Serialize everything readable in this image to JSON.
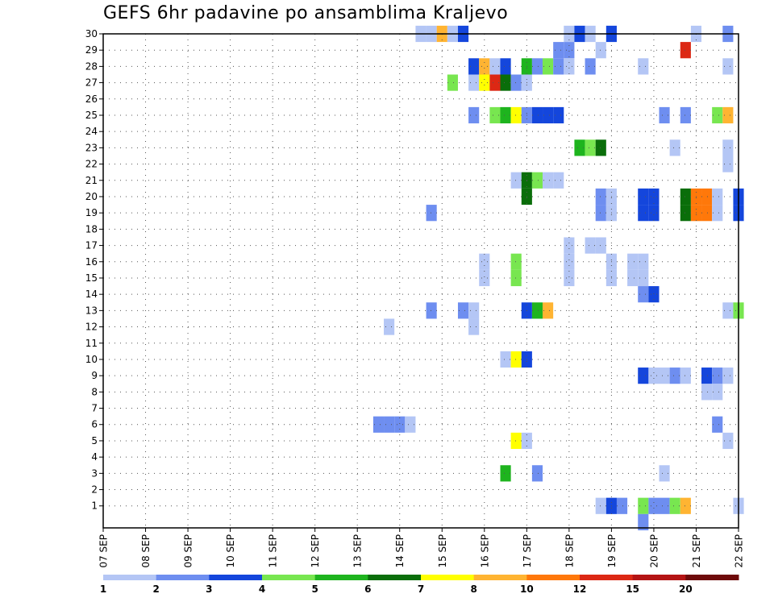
{
  "chart_data": {
    "type": "heatmap",
    "title": "GEFS 6hr padavine po ansamblima Kraljevo",
    "x_tick_labels": [
      "07 SEP",
      "08 SEP",
      "09 SEP",
      "10 SEP",
      "11 SEP",
      "12 SEP",
      "13 SEP",
      "14 SEP",
      "15 SEP",
      "16 SEP",
      "17 SEP",
      "18 SEP",
      "19 SEP",
      "20 SEP",
      "21 SEP",
      "22 SEP"
    ],
    "y_tick_labels": [
      "1",
      "2",
      "3",
      "4",
      "5",
      "6",
      "7",
      "8",
      "9",
      "10",
      "11",
      "12",
      "13",
      "14",
      "15",
      "16",
      "17",
      "18",
      "19",
      "20",
      "21",
      "22",
      "23",
      "24",
      "25",
      "26",
      "27",
      "28",
      "29",
      "30"
    ],
    "x_range_steps": [
      0,
      60
    ],
    "steps_per_day": 4,
    "y_range": [
      0,
      30
    ],
    "grid": true,
    "legend": {
      "position": "bottom",
      "labels": [
        "1",
        "2",
        "3",
        "4",
        "5",
        "6",
        "7",
        "8",
        "10",
        "12",
        "15",
        "20"
      ],
      "colors": [
        "#b4c6f5",
        "#6e8ef0",
        "#1446dc",
        "#78e650",
        "#1eb41e",
        "#0a6e0a",
        "#ffff00",
        "#ffb432",
        "#ff780a",
        "#dc2814",
        "#b41414",
        "#6e0a0a"
      ]
    },
    "cells": [
      {
        "m": 30,
        "s": 30,
        "c": 0
      },
      {
        "m": 30,
        "s": 31,
        "c": 0
      },
      {
        "m": 30,
        "s": 32,
        "c": 7
      },
      {
        "m": 30,
        "s": 33,
        "c": 0
      },
      {
        "m": 30,
        "s": 34,
        "c": 2
      },
      {
        "m": 30,
        "s": 44,
        "c": 0
      },
      {
        "m": 30,
        "s": 45,
        "c": 2
      },
      {
        "m": 30,
        "s": 46,
        "c": 0
      },
      {
        "m": 30,
        "s": 48,
        "c": 2
      },
      {
        "m": 30,
        "s": 56,
        "c": 0
      },
      {
        "m": 30,
        "s": 59,
        "c": 1
      },
      {
        "m": 29,
        "s": 43,
        "c": 1
      },
      {
        "m": 29,
        "s": 44,
        "c": 1
      },
      {
        "m": 29,
        "s": 47,
        "c": 0
      },
      {
        "m": 29,
        "s": 55,
        "c": 9
      },
      {
        "m": 28,
        "s": 35,
        "c": 2
      },
      {
        "m": 28,
        "s": 36,
        "c": 7
      },
      {
        "m": 28,
        "s": 37,
        "c": 0
      },
      {
        "m": 28,
        "s": 38,
        "c": 2
      },
      {
        "m": 28,
        "s": 40,
        "c": 4
      },
      {
        "m": 28,
        "s": 41,
        "c": 1
      },
      {
        "m": 28,
        "s": 42,
        "c": 3
      },
      {
        "m": 28,
        "s": 43,
        "c": 1
      },
      {
        "m": 28,
        "s": 44,
        "c": 0
      },
      {
        "m": 28,
        "s": 46,
        "c": 1
      },
      {
        "m": 28,
        "s": 51,
        "c": 0
      },
      {
        "m": 28,
        "s": 59,
        "c": 0
      },
      {
        "m": 27,
        "s": 33,
        "c": 3
      },
      {
        "m": 27,
        "s": 35,
        "c": 0
      },
      {
        "m": 27,
        "s": 36,
        "c": 6
      },
      {
        "m": 27,
        "s": 37,
        "c": 9
      },
      {
        "m": 27,
        "s": 38,
        "c": 5
      },
      {
        "m": 27,
        "s": 39,
        "c": 1
      },
      {
        "m": 27,
        "s": 40,
        "c": 0
      },
      {
        "m": 25,
        "s": 35,
        "c": 1
      },
      {
        "m": 25,
        "s": 37,
        "c": 3
      },
      {
        "m": 25,
        "s": 38,
        "c": 4
      },
      {
        "m": 25,
        "s": 39,
        "c": 6
      },
      {
        "m": 25,
        "s": 40,
        "c": 1
      },
      {
        "m": 25,
        "s": 41,
        "c": 2
      },
      {
        "m": 25,
        "s": 42,
        "c": 2
      },
      {
        "m": 25,
        "s": 43,
        "c": 2
      },
      {
        "m": 25,
        "s": 53,
        "c": 1
      },
      {
        "m": 25,
        "s": 55,
        "c": 1
      },
      {
        "m": 25,
        "s": 58,
        "c": 3
      },
      {
        "m": 25,
        "s": 59,
        "c": 7
      },
      {
        "m": 23,
        "s": 45,
        "c": 4
      },
      {
        "m": 23,
        "s": 46,
        "c": 3
      },
      {
        "m": 23,
        "s": 47,
        "c": 5
      },
      {
        "m": 23,
        "s": 54,
        "c": 0
      },
      {
        "m": 23,
        "s": 59,
        "c": 0
      },
      {
        "m": 22,
        "s": 59,
        "c": 0
      },
      {
        "m": 21,
        "s": 39,
        "c": 0
      },
      {
        "m": 21,
        "s": 40,
        "c": 5
      },
      {
        "m": 21,
        "s": 41,
        "c": 3
      },
      {
        "m": 21,
        "s": 42,
        "c": 0
      },
      {
        "m": 21,
        "s": 43,
        "c": 0
      },
      {
        "m": 20,
        "s": 40,
        "c": 5
      },
      {
        "m": 20,
        "s": 47,
        "c": 1
      },
      {
        "m": 20,
        "s": 48,
        "c": 0
      },
      {
        "m": 20,
        "s": 51,
        "c": 2
      },
      {
        "m": 20,
        "s": 52,
        "c": 2
      },
      {
        "m": 20,
        "s": 55,
        "c": 5
      },
      {
        "m": 20,
        "s": 56,
        "c": 8
      },
      {
        "m": 20,
        "s": 57,
        "c": 8
      },
      {
        "m": 20,
        "s": 58,
        "c": 0
      },
      {
        "m": 20,
        "s": 60,
        "c": 2
      },
      {
        "m": 19,
        "s": 31,
        "c": 1
      },
      {
        "m": 19,
        "s": 47,
        "c": 1
      },
      {
        "m": 19,
        "s": 48,
        "c": 0
      },
      {
        "m": 19,
        "s": 51,
        "c": 2
      },
      {
        "m": 19,
        "s": 52,
        "c": 2
      },
      {
        "m": 19,
        "s": 55,
        "c": 5
      },
      {
        "m": 19,
        "s": 56,
        "c": 8
      },
      {
        "m": 19,
        "s": 57,
        "c": 8
      },
      {
        "m": 19,
        "s": 58,
        "c": 0
      },
      {
        "m": 19,
        "s": 60,
        "c": 2
      },
      {
        "m": 17,
        "s": 44,
        "c": 0
      },
      {
        "m": 17,
        "s": 46,
        "c": 0
      },
      {
        "m": 17,
        "s": 47,
        "c": 0
      },
      {
        "m": 16,
        "s": 36,
        "c": 0
      },
      {
        "m": 16,
        "s": 39,
        "c": 3
      },
      {
        "m": 16,
        "s": 44,
        "c": 0
      },
      {
        "m": 16,
        "s": 48,
        "c": 0
      },
      {
        "m": 16,
        "s": 50,
        "c": 0
      },
      {
        "m": 16,
        "s": 51,
        "c": 0
      },
      {
        "m": 15,
        "s": 36,
        "c": 0
      },
      {
        "m": 15,
        "s": 39,
        "c": 3
      },
      {
        "m": 15,
        "s": 44,
        "c": 0
      },
      {
        "m": 15,
        "s": 48,
        "c": 0
      },
      {
        "m": 15,
        "s": 50,
        "c": 0
      },
      {
        "m": 15,
        "s": 51,
        "c": 0
      },
      {
        "m": 14,
        "s": 51,
        "c": 1
      },
      {
        "m": 14,
        "s": 52,
        "c": 2
      },
      {
        "m": 13,
        "s": 31,
        "c": 1
      },
      {
        "m": 13,
        "s": 34,
        "c": 1
      },
      {
        "m": 13,
        "s": 35,
        "c": 0
      },
      {
        "m": 13,
        "s": 40,
        "c": 2
      },
      {
        "m": 13,
        "s": 41,
        "c": 4
      },
      {
        "m": 13,
        "s": 42,
        "c": 7
      },
      {
        "m": 13,
        "s": 59,
        "c": 0
      },
      {
        "m": 13,
        "s": 60,
        "c": 3
      },
      {
        "m": 12,
        "s": 27,
        "c": 0
      },
      {
        "m": 12,
        "s": 35,
        "c": 0
      },
      {
        "m": 10,
        "s": 38,
        "c": 0
      },
      {
        "m": 10,
        "s": 39,
        "c": 6
      },
      {
        "m": 10,
        "s": 40,
        "c": 2
      },
      {
        "m": 9,
        "s": 51,
        "c": 2
      },
      {
        "m": 9,
        "s": 52,
        "c": 0
      },
      {
        "m": 9,
        "s": 53,
        "c": 0
      },
      {
        "m": 9,
        "s": 54,
        "c": 1
      },
      {
        "m": 9,
        "s": 55,
        "c": 0
      },
      {
        "m": 9,
        "s": 57,
        "c": 2
      },
      {
        "m": 9,
        "s": 58,
        "c": 1
      },
      {
        "m": 9,
        "s": 59,
        "c": 0
      },
      {
        "m": 8,
        "s": 57,
        "c": 0
      },
      {
        "m": 8,
        "s": 58,
        "c": 0
      },
      {
        "m": 6,
        "s": 26,
        "c": 1
      },
      {
        "m": 6,
        "s": 27,
        "c": 1
      },
      {
        "m": 6,
        "s": 28,
        "c": 1
      },
      {
        "m": 6,
        "s": 29,
        "c": 0
      },
      {
        "m": 6,
        "s": 58,
        "c": 1
      },
      {
        "m": 5,
        "s": 39,
        "c": 6
      },
      {
        "m": 5,
        "s": 40,
        "c": 0
      },
      {
        "m": 5,
        "s": 59,
        "c": 0
      },
      {
        "m": 3,
        "s": 38,
        "c": 4
      },
      {
        "m": 3,
        "s": 41,
        "c": 1
      },
      {
        "m": 3,
        "s": 53,
        "c": 0
      },
      {
        "m": 1,
        "s": 47,
        "c": 0
      },
      {
        "m": 1,
        "s": 48,
        "c": 2
      },
      {
        "m": 1,
        "s": 49,
        "c": 1
      },
      {
        "m": 1,
        "s": 51,
        "c": 3
      },
      {
        "m": 1,
        "s": 52,
        "c": 1
      },
      {
        "m": 1,
        "s": 53,
        "c": 1
      },
      {
        "m": 1,
        "s": 54,
        "c": 3
      },
      {
        "m": 1,
        "s": 55,
        "c": 7
      },
      {
        "m": 1,
        "s": 60,
        "c": 0
      },
      {
        "m": 0,
        "s": 51,
        "c": 1
      }
    ]
  }
}
